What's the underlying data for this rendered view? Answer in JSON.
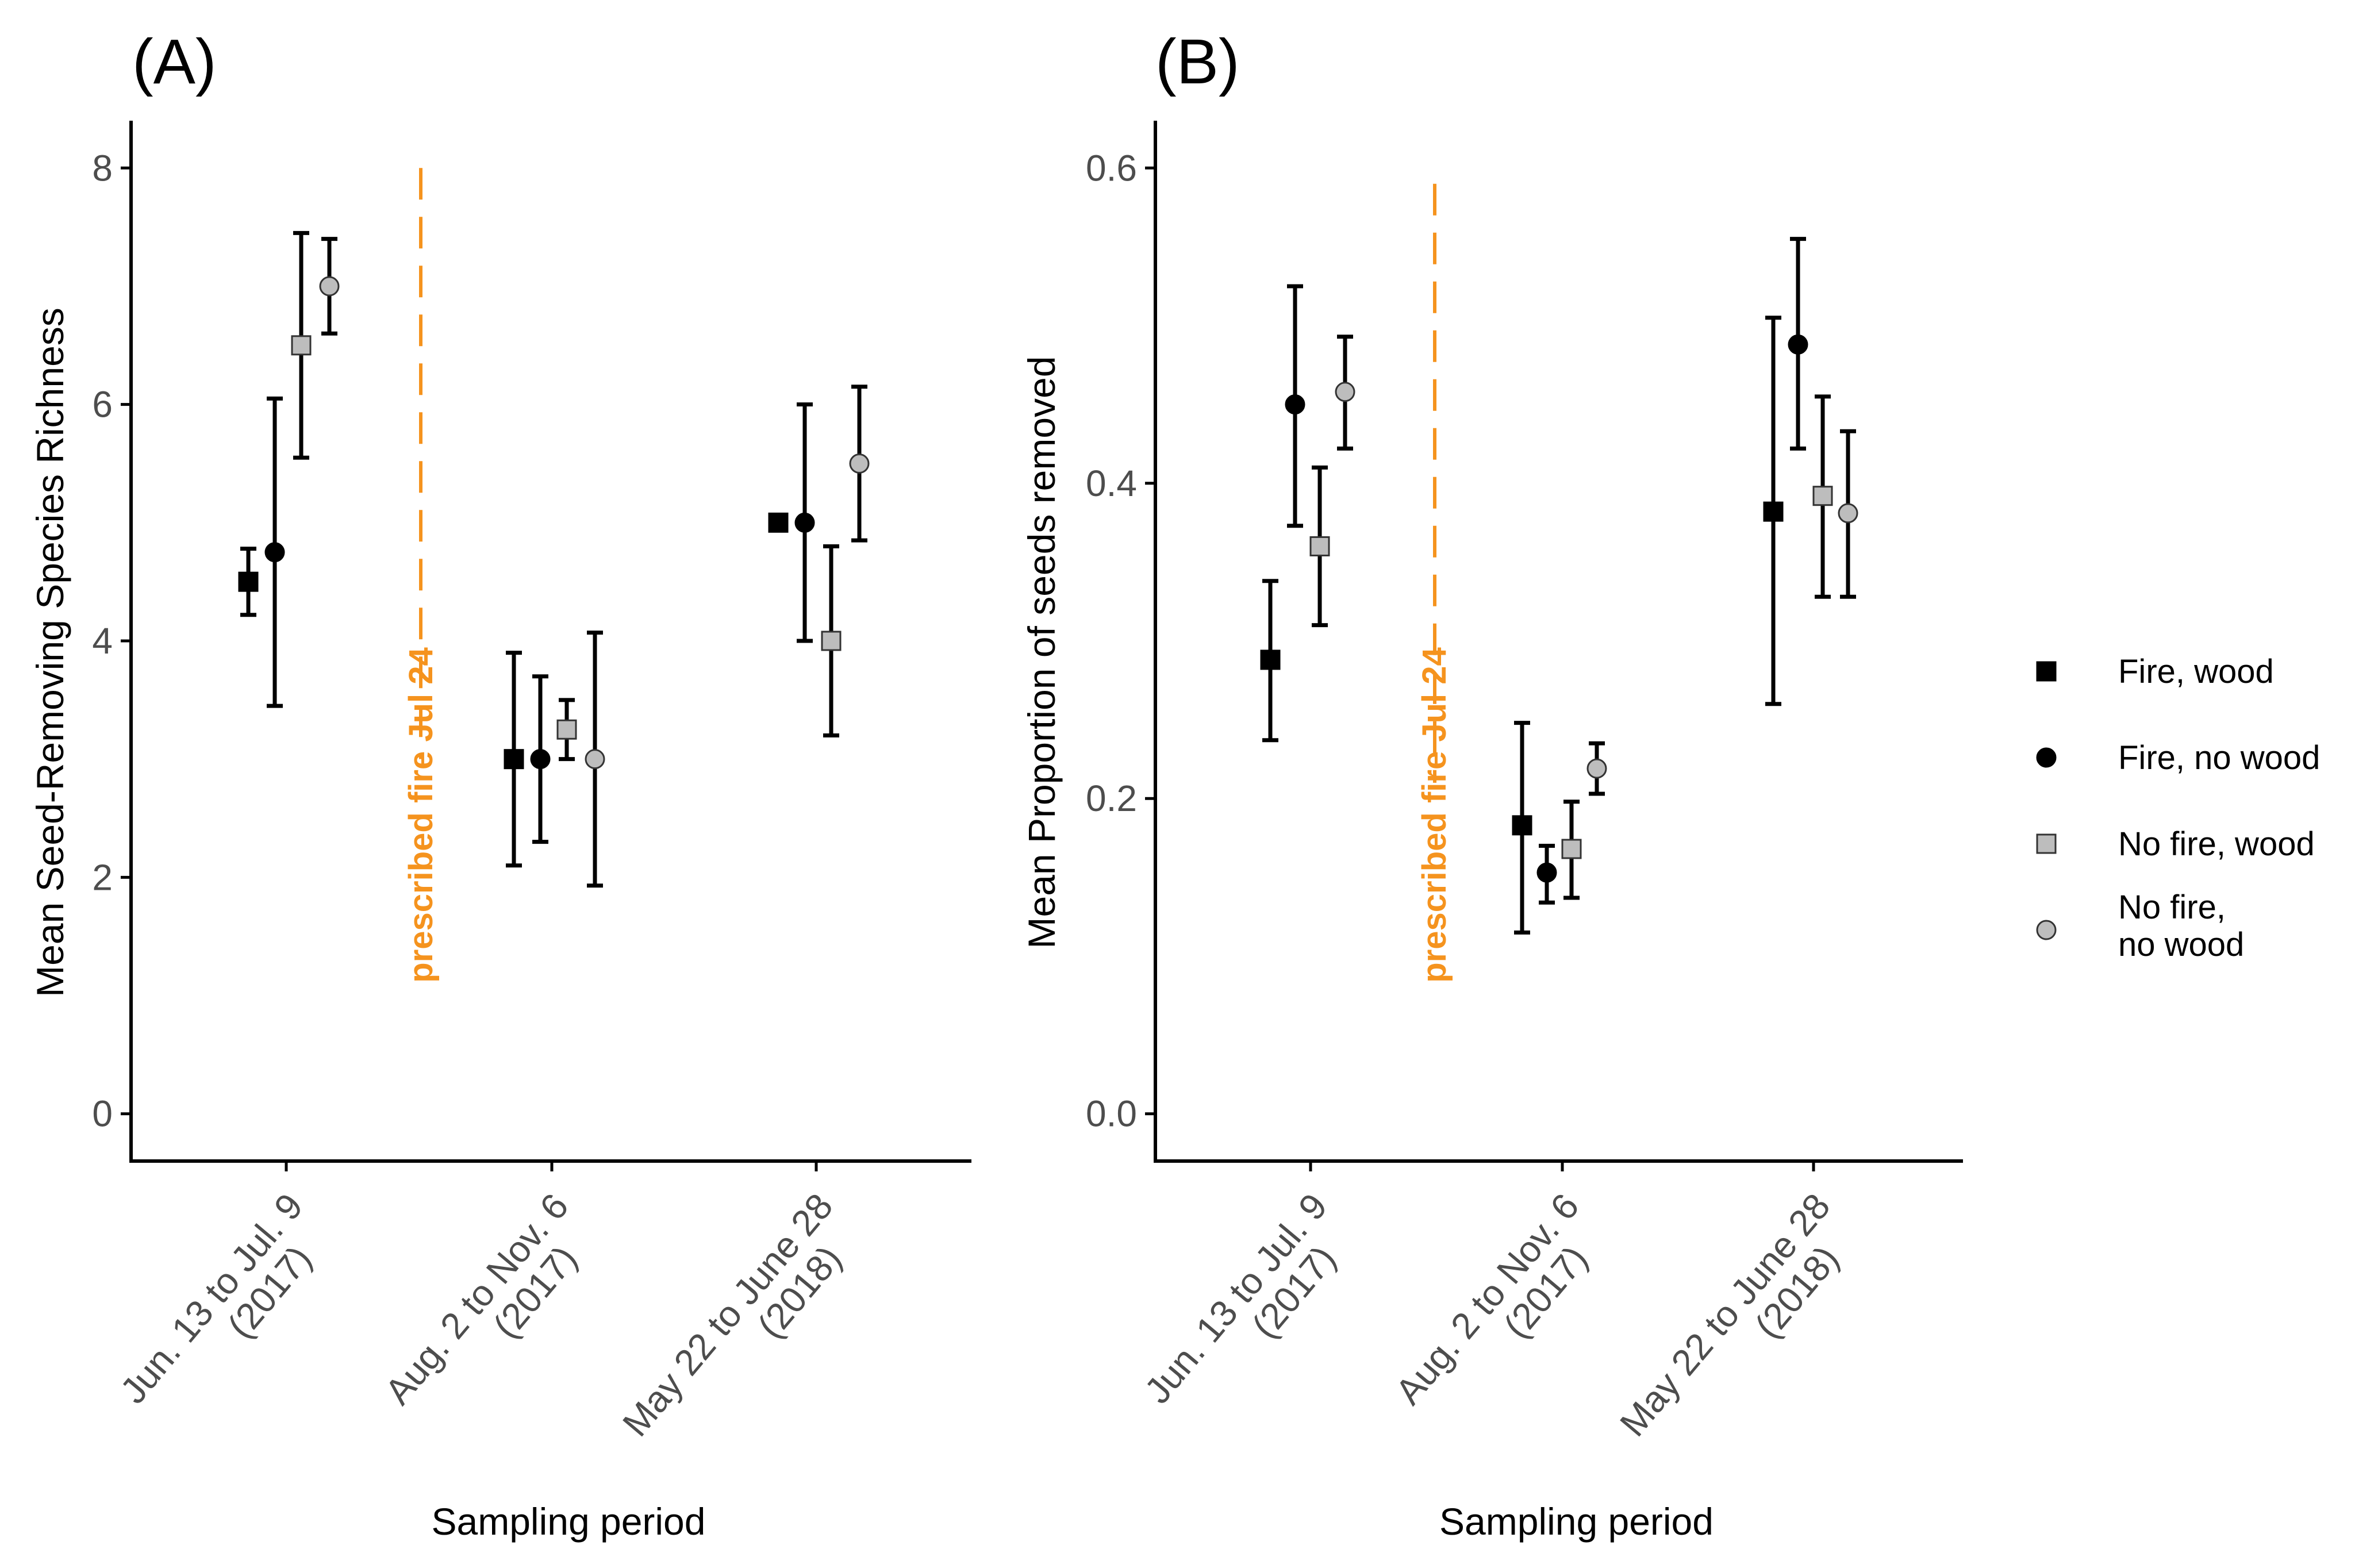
{
  "legend": {
    "items": [
      {
        "key": "fw",
        "label": "Fire, wood",
        "shape": "square",
        "fill": "#000000"
      },
      {
        "key": "fnw",
        "label": "Fire, no wood",
        "shape": "circle",
        "fill": "#000000"
      },
      {
        "key": "nfw",
        "label": "No fire, wood",
        "shape": "square",
        "fill": "#bdbdbd"
      },
      {
        "key": "nfnw",
        "label_lines": [
          "No fire,",
          "no wood"
        ],
        "shape": "circle",
        "fill": "#bdbdbd"
      }
    ]
  },
  "colors": {
    "fire_line": "#f5931e",
    "marker_dark": "#000000",
    "marker_light": "#bdbdbd",
    "axis": "#000000",
    "tick_text": "#4d4d4d"
  },
  "chart_data": [
    {
      "panel": "(A)",
      "type": "scatter",
      "ylabel": "Mean Seed-Removing Species Richness",
      "xlabel": "Sampling period",
      "ylim": [
        -0.4,
        8.4
      ],
      "yticks": [
        0,
        2,
        4,
        6,
        8
      ],
      "ytick_labels": [
        "0",
        "2",
        "4",
        "6",
        "8"
      ],
      "grid": false,
      "categories": [
        [
          "Jun. 13 to Jul. 9",
          "(2017)"
        ],
        [
          "Aug. 2 to Nov. 6",
          "(2017)"
        ],
        [
          "May 22 to June 28",
          "(2018)"
        ]
      ],
      "fire_annotation": {
        "text": "prescribed fire Jul 24",
        "y_range": [
          3,
          8
        ]
      },
      "series": [
        {
          "key": "fw",
          "name": "Fire, wood",
          "values": [
            4.5,
            3.0,
            5.0
          ],
          "lower": [
            4.22,
            2.1,
            5.0
          ],
          "upper": [
            4.78,
            3.9,
            5.0
          ]
        },
        {
          "key": "fnw",
          "name": "Fire, no wood",
          "values": [
            4.75,
            3.0,
            5.0
          ],
          "lower": [
            3.45,
            2.3,
            4.0
          ],
          "upper": [
            6.05,
            3.7,
            6.0
          ]
        },
        {
          "key": "nfw",
          "name": "No fire, wood",
          "values": [
            6.5,
            3.25,
            4.0
          ],
          "lower": [
            5.55,
            3.0,
            3.2
          ],
          "upper": [
            7.45,
            3.5,
            4.8
          ]
        },
        {
          "key": "nfnw",
          "name": "No fire, no wood",
          "values": [
            7.0,
            3.0,
            5.5
          ],
          "lower": [
            6.6,
            1.93,
            4.85
          ],
          "upper": [
            7.4,
            4.07,
            6.15
          ]
        }
      ]
    },
    {
      "panel": "(B)",
      "type": "scatter",
      "ylabel": "Mean Proportion of seeds removed",
      "xlabel": "Sampling period",
      "ylim": [
        -0.03,
        0.63
      ],
      "yticks": [
        0.0,
        0.2,
        0.4,
        0.6
      ],
      "ytick_labels": [
        "0.0",
        "0.2",
        "0.4",
        "0.6"
      ],
      "grid": false,
      "categories": [
        [
          "Jun. 13 to Jul. 9",
          "(2017)"
        ],
        [
          "Aug. 2 to Nov. 6",
          "(2017)"
        ],
        [
          "May 22 to June 28",
          "(2018)"
        ]
      ],
      "fire_annotation": {
        "text": "prescribed fire Jul 24",
        "y_range": [
          0.21,
          0.59
        ]
      },
      "series": [
        {
          "key": "fw",
          "name": "Fire, wood",
          "values": [
            0.288,
            0.183,
            0.382
          ],
          "lower": [
            0.237,
            0.115,
            0.26
          ],
          "upper": [
            0.338,
            0.248,
            0.505
          ]
        },
        {
          "key": "fnw",
          "name": "Fire, no wood",
          "values": [
            0.45,
            0.153,
            0.488
          ],
          "lower": [
            0.373,
            0.134,
            0.422
          ],
          "upper": [
            0.525,
            0.17,
            0.555
          ]
        },
        {
          "key": "nfw",
          "name": "No fire, wood",
          "values": [
            0.36,
            0.168,
            0.392
          ],
          "lower": [
            0.31,
            0.137,
            0.328
          ],
          "upper": [
            0.41,
            0.198,
            0.455
          ]
        },
        {
          "key": "nfnw",
          "name": "No fire, no wood",
          "values": [
            0.458,
            0.219,
            0.381
          ],
          "lower": [
            0.422,
            0.203,
            0.328
          ],
          "upper": [
            0.493,
            0.235,
            0.433
          ]
        }
      ]
    }
  ]
}
